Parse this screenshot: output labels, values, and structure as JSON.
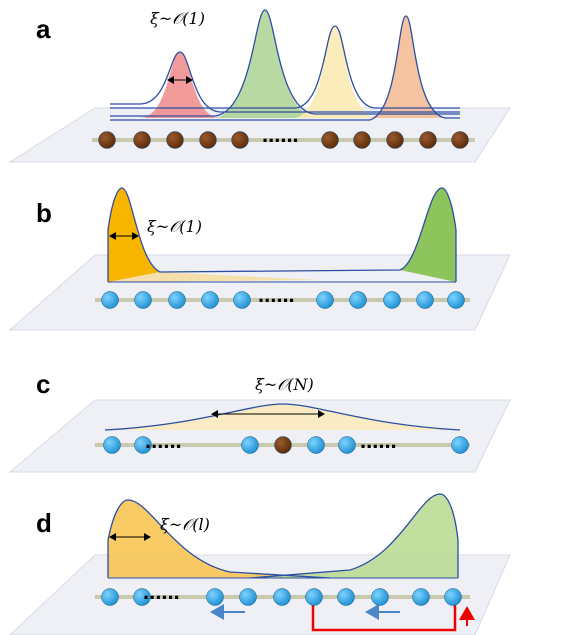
{
  "panels": [
    {
      "label": "a",
      "annotation": "ξ~𝒪(1)",
      "ellipsis": "......"
    },
    {
      "label": "b",
      "annotation": "ξ~𝒪(1)",
      "ellipsis": "......"
    },
    {
      "label": "c",
      "annotation": "ξ~𝒪(N)",
      "ellipsis": [
        "......",
        "......"
      ]
    },
    {
      "label": "d",
      "annotation": "ξ~𝒪(l)",
      "ellipsis": "......"
    }
  ]
}
